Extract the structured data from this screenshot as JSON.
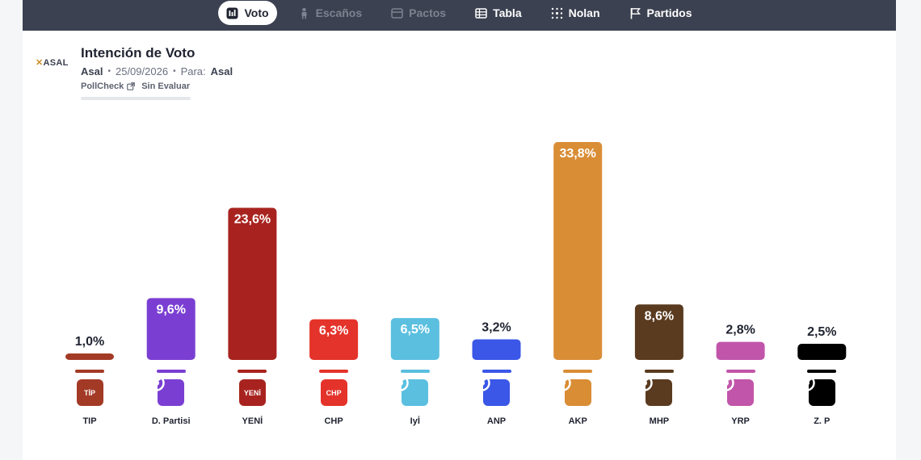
{
  "nav": {
    "items": [
      {
        "label": "Voto",
        "icon": "bar-chart-icon",
        "state": "active"
      },
      {
        "label": "Escaños",
        "icon": "seat-icon",
        "state": "disabled"
      },
      {
        "label": "Pactos",
        "icon": "pacts-icon",
        "state": "disabled"
      },
      {
        "label": "Tabla",
        "icon": "table-icon",
        "state": "normal"
      },
      {
        "label": "Nolan",
        "icon": "nolan-icon",
        "state": "normal"
      },
      {
        "label": "Partidos",
        "icon": "flag-icon",
        "state": "normal"
      }
    ]
  },
  "header": {
    "logo_mark": "✕",
    "logo_text": "ASAL",
    "title": "Intención de Voto",
    "pollster": "Asal",
    "date": "25/09/2026",
    "para_label": "Para:",
    "client": "Asal",
    "pollcheck": "PollCheck",
    "status": "Sin Evaluar"
  },
  "chart_data": {
    "type": "bar",
    "title": "",
    "xlabel": "",
    "ylabel": "",
    "ylim": [
      0,
      33.8
    ],
    "grid": false,
    "categories": [
      "TIP",
      "D. Partisi",
      "YENİ",
      "CHP",
      "Iyİ",
      "ANP",
      "AKP",
      "MHP",
      "YRP",
      "Z. P"
    ],
    "values": [
      1.0,
      9.6,
      23.6,
      6.3,
      6.5,
      3.2,
      33.8,
      8.6,
      2.8,
      2.5
    ],
    "value_labels": [
      "1,0%",
      "9,6%",
      "23,6%",
      "6,3%",
      "6,5%",
      "3,2%",
      "33,8%",
      "8,6%",
      "2,8%",
      "2,5%"
    ],
    "colors": [
      "#a33a26",
      "#7a3fd2",
      "#a8231f",
      "#e4332a",
      "#5bbfe0",
      "#3a57e8",
      "#d98d35",
      "#5a3b1f",
      "#c155a9",
      "#000000"
    ],
    "emblems": [
      "TİP",
      "",
      "YENİ",
      "CHP",
      "",
      "",
      "",
      "",
      "",
      ""
    ]
  }
}
